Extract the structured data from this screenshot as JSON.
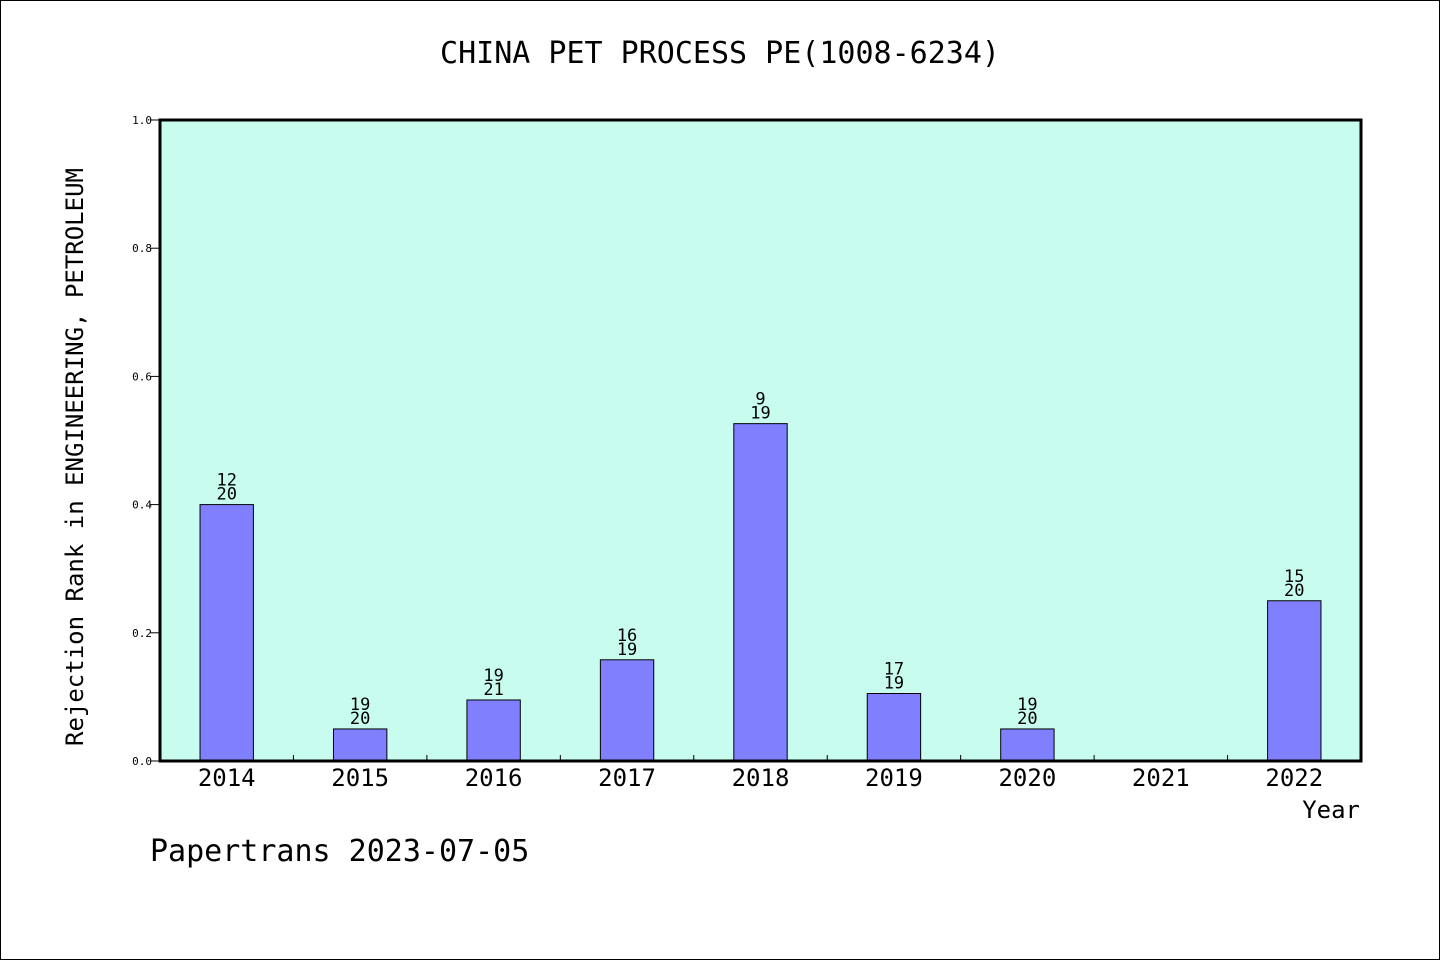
{
  "chart_data": {
    "type": "bar",
    "title": "CHINA PET PROCESS PE(1008-6234)",
    "xlabel": "Year",
    "ylabel": "Rejection Rank in ENGINEERING, PETROLEUM",
    "categories": [
      "2014",
      "2015",
      "2016",
      "2017",
      "2018",
      "2019",
      "2020",
      "2021",
      "2022"
    ],
    "values": [
      0.4,
      0.05,
      0.0952,
      0.1579,
      0.5263,
      0.1053,
      0.05,
      null,
      0.25
    ],
    "bar_labels": [
      [
        "12",
        "20"
      ],
      [
        "19",
        "20"
      ],
      [
        "19",
        "21"
      ],
      [
        "16",
        "19"
      ],
      [
        "9",
        "19"
      ],
      [
        "17",
        "19"
      ],
      [
        "19",
        "20"
      ],
      null,
      [
        "15",
        "20"
      ]
    ],
    "ylim": [
      0,
      1.0
    ],
    "yticks": [
      "0.0",
      "0.2",
      "0.4",
      "0.6",
      "0.8",
      "1.0"
    ],
    "grid": false,
    "colors": {
      "plot_background": "#c8fcee",
      "bar_fill": "#8080ff",
      "bar_stroke": "#000000"
    }
  },
  "footer": {
    "credit": "Papertrans 2023-07-05"
  }
}
